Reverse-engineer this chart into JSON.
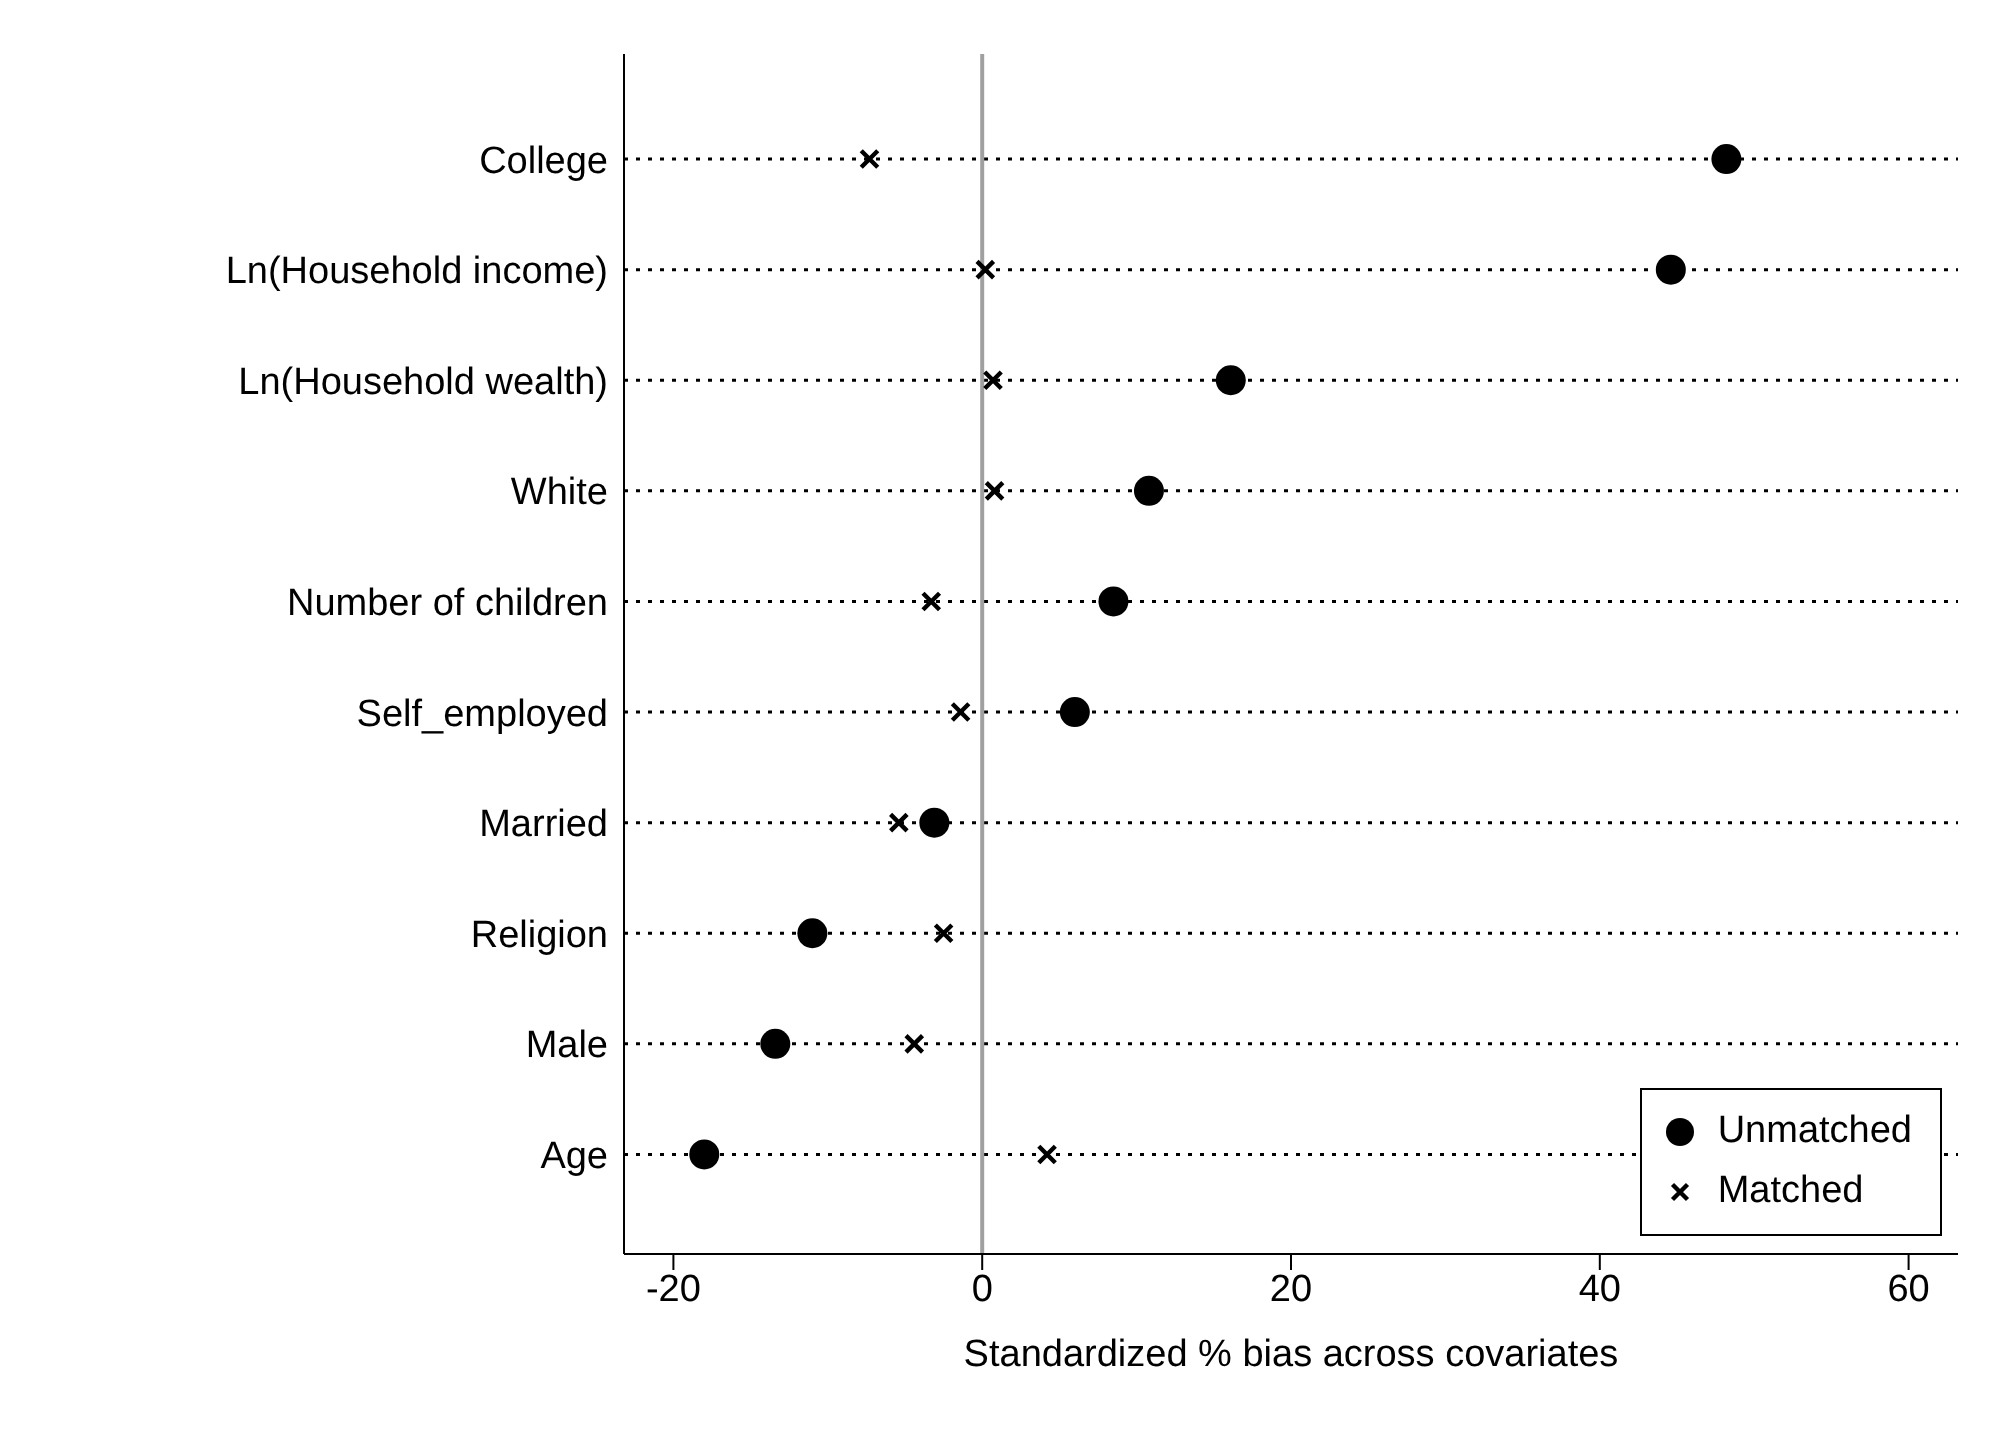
{
  "chart_data": {
    "type": "scatter",
    "orientation": "horizontal",
    "xlabel": "Standardized % bias across covariates",
    "categories": [
      "College",
      "Ln(Household income)",
      "Ln(Household wealth)",
      "White",
      "Number of children",
      "Self_employed",
      "Married",
      "Religion",
      "Male",
      "Age"
    ],
    "series": [
      {
        "name": "Unmatched",
        "color": "#000000",
        "marker": "circle",
        "values": [
          48.2,
          44.6,
          16.1,
          10.8,
          8.5,
          6.0,
          -3.1,
          -11.0,
          -13.4,
          -18.0
        ]
      },
      {
        "name": "Matched",
        "color": "#000000",
        "marker": "cross",
        "values": [
          -7.3,
          0.2,
          0.7,
          0.8,
          -3.3,
          -1.4,
          -5.4,
          -2.5,
          -4.4,
          4.2
        ]
      }
    ],
    "xlim": [
      -23.2,
      63.2
    ],
    "xticks": [
      -20,
      0,
      20,
      40,
      60
    ],
    "ref_lines": [
      {
        "axis": "x",
        "value": 0,
        "color": "#a0a0a0"
      }
    ],
    "grid": "y",
    "legend": "bottom right"
  }
}
